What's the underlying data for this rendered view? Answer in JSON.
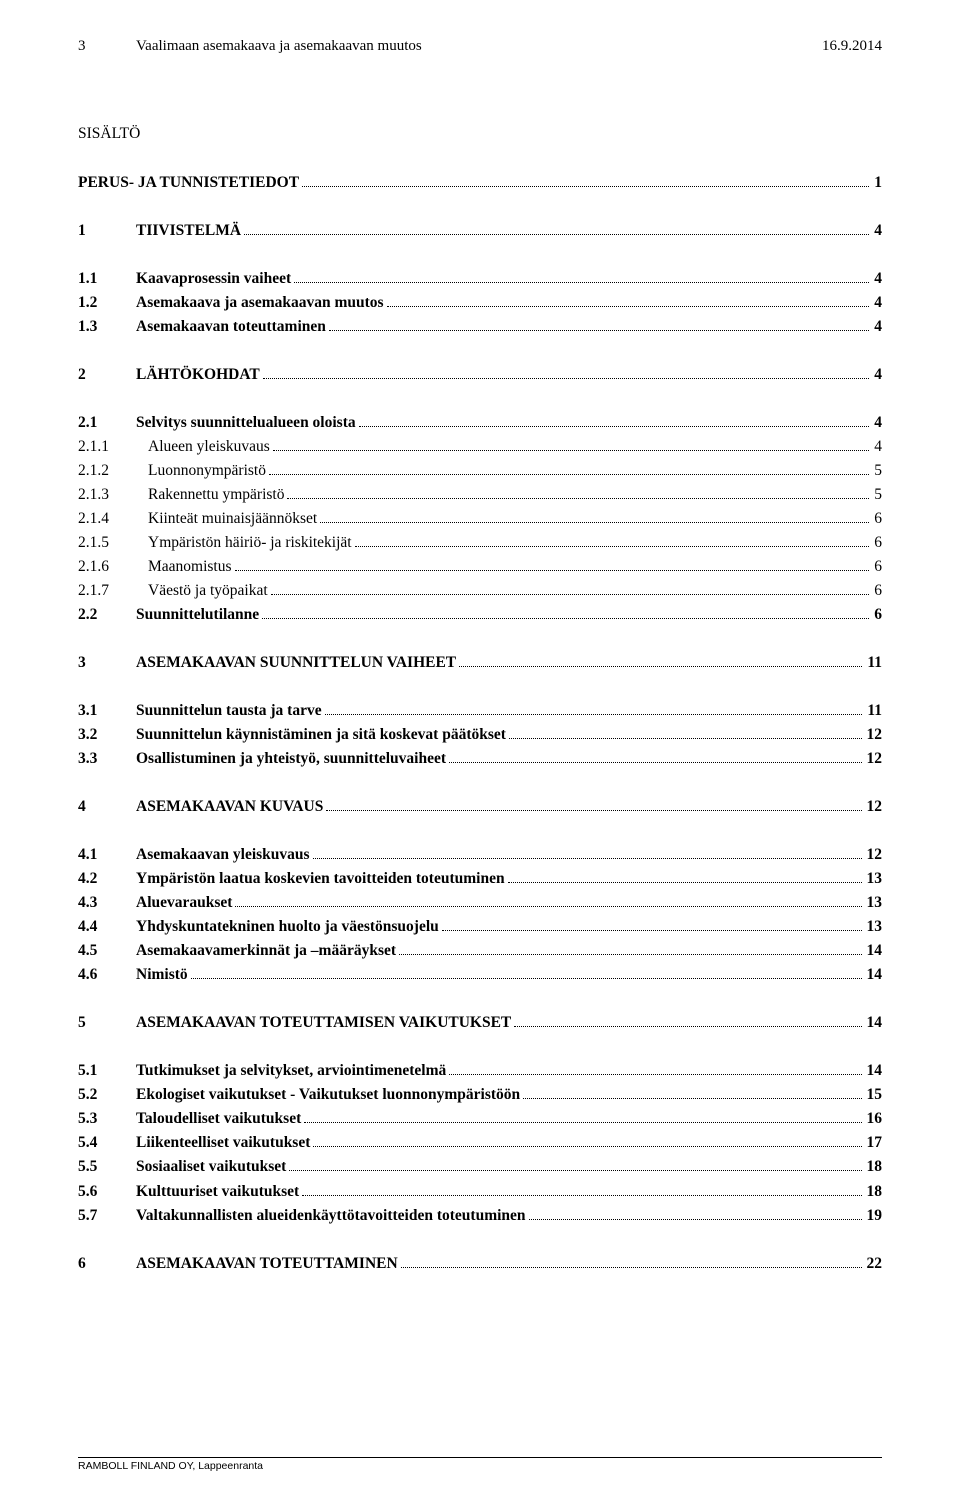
{
  "header": {
    "page_num": "3",
    "doc_title": "Vaalimaan asemakaava ja asemakaavan muutos",
    "date": "16.9.2014"
  },
  "sisalto_label": "SISÄLTÖ",
  "main_heading": {
    "label": "PERUS- JA TUNNISTETIEDOT",
    "page": "1"
  },
  "sections": [
    {
      "num": "1",
      "label": "TIIVISTELMÄ",
      "page": "4",
      "subs": [
        {
          "num": "1.1",
          "label": "Kaavaprosessin vaiheet",
          "page": "4"
        },
        {
          "num": "1.2",
          "label": "Asemakaava ja asemakaavan muutos",
          "page": "4"
        },
        {
          "num": "1.3",
          "label": "Asemakaavan toteuttaminen",
          "page": "4"
        }
      ]
    },
    {
      "num": "2",
      "label": "LÄHTÖKOHDAT",
      "page": "4",
      "subs": [
        {
          "num": "2.1",
          "label": "Selvitys suunnittelualueen oloista",
          "page": "4",
          "subsubs": [
            {
              "num": "2.1.1",
              "label": "Alueen yleiskuvaus",
              "page": "4"
            },
            {
              "num": "2.1.2",
              "label": "Luonnonympäristö",
              "page": "5"
            },
            {
              "num": "2.1.3",
              "label": "Rakennettu ympäristö",
              "page": "5"
            },
            {
              "num": "2.1.4",
              "label": "Kiinteät muinaisjäännökset",
              "page": "6"
            },
            {
              "num": "2.1.5",
              "label": "Ympäristön häiriö- ja riskitekijät",
              "page": "6"
            },
            {
              "num": "2.1.6",
              "label": "Maanomistus",
              "page": "6"
            },
            {
              "num": "2.1.7",
              "label": "Väestö ja työpaikat",
              "page": "6"
            }
          ]
        },
        {
          "num": "2.2",
          "label": "Suunnittelutilanne",
          "page": "6"
        }
      ]
    },
    {
      "num": "3",
      "label": "ASEMAKAAVAN SUUNNITTELUN VAIHEET",
      "page": "11",
      "subs": [
        {
          "num": "3.1",
          "label": "Suunnittelun tausta ja tarve",
          "page": "11"
        },
        {
          "num": "3.2",
          "label": "Suunnittelun käynnistäminen ja sitä koskevat päätökset",
          "page": "12"
        },
        {
          "num": "3.3",
          "label": "Osallistuminen ja yhteistyö, suunnitteluvaiheet",
          "page": "12"
        }
      ]
    },
    {
      "num": "4",
      "label": "ASEMAKAAVAN KUVAUS",
      "page": "12",
      "subs": [
        {
          "num": "4.1",
          "label": "Asemakaavan yleiskuvaus",
          "page": "12"
        },
        {
          "num": "4.2",
          "label": "Ympäristön laatua koskevien tavoitteiden toteutuminen",
          "page": "13"
        },
        {
          "num": "4.3",
          "label": "Aluevaraukset",
          "page": "13"
        },
        {
          "num": "4.4",
          "label": "Yhdyskuntatekninen huolto ja väestönsuojelu",
          "page": "13"
        },
        {
          "num": "4.5",
          "label": "Asemakaavamerkinnät ja –määräykset",
          "page": "14"
        },
        {
          "num": "4.6",
          "label": "Nimistö",
          "page": "14"
        }
      ]
    },
    {
      "num": "5",
      "label": "ASEMAKAAVAN TOTEUTTAMISEN VAIKUTUKSET",
      "page": "14",
      "subs": [
        {
          "num": "5.1",
          "label": "Tutkimukset ja selvitykset, arviointimenetelmä",
          "page": "14"
        },
        {
          "num": "5.2",
          "label": "Ekologiset vaikutukset - Vaikutukset luonnonympäristöön",
          "page": "15"
        },
        {
          "num": "5.3",
          "label": "Taloudelliset vaikutukset",
          "page": "16"
        },
        {
          "num": "5.4",
          "label": "Liikenteelliset vaikutukset",
          "page": "17"
        },
        {
          "num": "5.5",
          "label": "Sosiaaliset vaikutukset",
          "page": "18"
        },
        {
          "num": "5.6",
          "label": "Kulttuuriset vaikutukset",
          "page": "18"
        },
        {
          "num": "5.7",
          "label": "Valtakunnallisten alueidenkäyttötavoitteiden toteutuminen",
          "page": "19"
        }
      ]
    },
    {
      "num": "6",
      "label": "ASEMAKAAVAN TOTEUTTAMINEN",
      "page": "22",
      "subs": []
    }
  ],
  "footer": "RAMBOLL FINLAND OY, Lappeenranta"
}
